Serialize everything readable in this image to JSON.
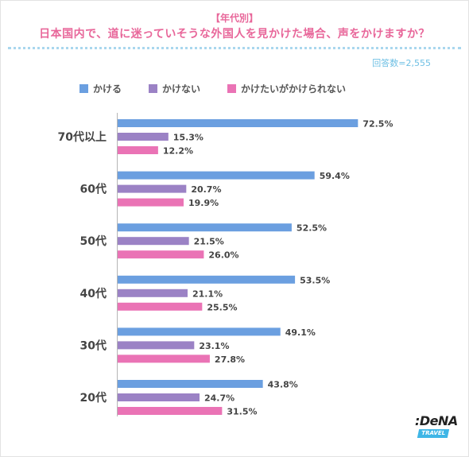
{
  "header": {
    "subtitle": "【年代別】",
    "title": "日本国内で、道に迷っていそうな外国人を見かけた場合、声をかけますか？",
    "respondents": "回答数=2,555"
  },
  "logo": {
    "text": ":DeNA",
    "band": "TRAVEL"
  },
  "chart_data": {
    "type": "bar",
    "orientation": "horizontal",
    "categories": [
      "70代以上",
      "60代",
      "50代",
      "40代",
      "30代",
      "20代"
    ],
    "series": [
      {
        "name": "かける",
        "color": "#6b9fe0",
        "values": [
          72.5,
          59.4,
          52.5,
          53.5,
          49.1,
          43.8
        ]
      },
      {
        "name": "かけない",
        "color": "#9b82c5",
        "values": [
          15.3,
          20.7,
          21.5,
          21.1,
          23.1,
          24.7
        ]
      },
      {
        "name": "かけたいがかけられない",
        "color": "#ea73b5",
        "values": [
          12.2,
          19.9,
          26.0,
          25.5,
          27.8,
          31.5
        ]
      }
    ],
    "value_suffix": "%",
    "legend_position": "top",
    "grid": false
  }
}
